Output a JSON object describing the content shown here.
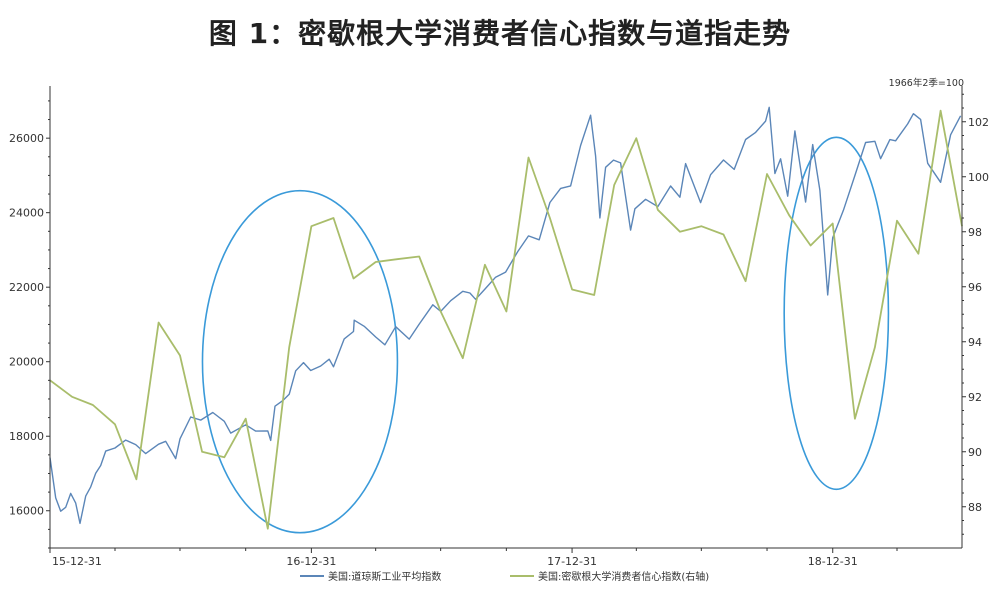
{
  "title": "图 1：密歇根大学消费者信心指数与道指走势",
  "chart_data": {
    "type": "line",
    "title": "图 1：密歇根大学消费者信心指数与道指走势",
    "x_axis": {
      "labels": [
        "15-12-31",
        "16-12-31",
        "17-12-31",
        "18-12-31"
      ],
      "range": [
        "2015-12-31",
        "2019-06-30"
      ]
    },
    "y_left": {
      "ticks": [
        16000,
        18000,
        20000,
        22000,
        24000,
        26000
      ],
      "range": [
        15000,
        27400
      ]
    },
    "y_right": {
      "ticks": [
        88,
        90,
        92,
        94,
        96,
        98,
        100,
        102
      ],
      "range": [
        86.5,
        103.3
      ],
      "unit": "1966年2季=100"
    },
    "grid": false,
    "legend_position": "bottom",
    "series": [
      {
        "name": "美国:道琼斯工业平均指数",
        "axis": "left",
        "color": "#5b86b8",
        "points": [
          [
            "2015-12-31",
            17425
          ],
          [
            "2016-01-08",
            16346
          ],
          [
            "2016-01-15",
            15988
          ],
          [
            "2016-01-22",
            16093
          ],
          [
            "2016-01-29",
            16466
          ],
          [
            "2016-02-05",
            16205
          ],
          [
            "2016-02-11",
            15660
          ],
          [
            "2016-02-19",
            16392
          ],
          [
            "2016-02-26",
            16640
          ],
          [
            "2016-03-04",
            17006
          ],
          [
            "2016-03-11",
            17213
          ],
          [
            "2016-03-18",
            17602
          ],
          [
            "2016-03-31",
            17685
          ],
          [
            "2016-04-15",
            17897
          ],
          [
            "2016-04-29",
            17774
          ],
          [
            "2016-05-13",
            17535
          ],
          [
            "2016-05-31",
            17787
          ],
          [
            "2016-06-10",
            17865
          ],
          [
            "2016-06-24",
            17400
          ],
          [
            "2016-06-30",
            17930
          ],
          [
            "2016-07-15",
            18516
          ],
          [
            "2016-07-29",
            18432
          ],
          [
            "2016-08-15",
            18636
          ],
          [
            "2016-08-31",
            18400
          ],
          [
            "2016-09-09",
            18085
          ],
          [
            "2016-09-30",
            18308
          ],
          [
            "2016-10-14",
            18138
          ],
          [
            "2016-10-31",
            18142
          ],
          [
            "2016-11-04",
            17888
          ],
          [
            "2016-11-10",
            18807
          ],
          [
            "2016-11-21",
            18956
          ],
          [
            "2016-11-30",
            19124
          ],
          [
            "2016-12-09",
            19757
          ],
          [
            "2016-12-20",
            19975
          ],
          [
            "2016-12-30",
            19763
          ],
          [
            "2017-01-13",
            19886
          ],
          [
            "2017-01-25",
            20068
          ],
          [
            "2017-01-31",
            19864
          ],
          [
            "2017-02-15",
            20611
          ],
          [
            "2017-02-28",
            20812
          ],
          [
            "2017-03-01",
            21115
          ],
          [
            "2017-03-15",
            20950
          ],
          [
            "2017-03-31",
            20663
          ],
          [
            "2017-04-13",
            20453
          ],
          [
            "2017-04-28",
            20940
          ],
          [
            "2017-05-17",
            20606
          ],
          [
            "2017-05-31",
            21009
          ],
          [
            "2017-06-19",
            21528
          ],
          [
            "2017-06-30",
            21350
          ],
          [
            "2017-07-14",
            21638
          ],
          [
            "2017-07-31",
            21891
          ],
          [
            "2017-08-10",
            21844
          ],
          [
            "2017-08-18",
            21674
          ],
          [
            "2017-08-31",
            21948
          ],
          [
            "2017-09-15",
            22268
          ],
          [
            "2017-09-29",
            22405
          ],
          [
            "2017-10-16",
            22957
          ],
          [
            "2017-10-31",
            23377
          ],
          [
            "2017-11-15",
            23272
          ],
          [
            "2017-11-30",
            24272
          ],
          [
            "2017-12-15",
            24651
          ],
          [
            "2017-12-29",
            24719
          ],
          [
            "2018-01-12",
            25803
          ],
          [
            "2018-01-26",
            26617
          ],
          [
            "2018-02-02",
            25521
          ],
          [
            "2018-02-08",
            23860
          ],
          [
            "2018-02-16",
            25219
          ],
          [
            "2018-02-27",
            25410
          ],
          [
            "2018-03-09",
            25336
          ],
          [
            "2018-03-23",
            23533
          ],
          [
            "2018-03-29",
            24103
          ],
          [
            "2018-04-13",
            24360
          ],
          [
            "2018-04-30",
            24163
          ],
          [
            "2018-05-18",
            24715
          ],
          [
            "2018-05-31",
            24416
          ],
          [
            "2018-06-08",
            25317
          ],
          [
            "2018-06-29",
            24271
          ],
          [
            "2018-07-13",
            25019
          ],
          [
            "2018-07-31",
            25415
          ],
          [
            "2018-08-15",
            25162
          ],
          [
            "2018-08-31",
            25965
          ],
          [
            "2018-09-14",
            26154
          ],
          [
            "2018-09-28",
            26458
          ],
          [
            "2018-10-03",
            26828
          ],
          [
            "2018-10-11",
            25052
          ],
          [
            "2018-10-19",
            25445
          ],
          [
            "2018-10-29",
            24443
          ],
          [
            "2018-11-08",
            26191
          ],
          [
            "2018-11-23",
            24286
          ],
          [
            "2018-12-03",
            25826
          ],
          [
            "2018-12-13",
            24597
          ],
          [
            "2018-12-24",
            21792
          ],
          [
            "2018-12-31",
            23327
          ],
          [
            "2019-01-15",
            24065
          ],
          [
            "2019-01-31",
            24999
          ],
          [
            "2019-02-15",
            25883
          ],
          [
            "2019-02-28",
            25916
          ],
          [
            "2019-03-08",
            25450
          ],
          [
            "2019-03-21",
            25962
          ],
          [
            "2019-03-29",
            25929
          ],
          [
            "2019-04-15",
            26384
          ],
          [
            "2019-04-23",
            26656
          ],
          [
            "2019-05-03",
            26504
          ],
          [
            "2019-05-13",
            25324
          ],
          [
            "2019-05-31",
            24815
          ],
          [
            "2019-06-14",
            26090
          ],
          [
            "2019-06-28",
            26600
          ]
        ]
      },
      {
        "name": "美国:密歇根大学消费者信心指数(右轴)",
        "axis": "right",
        "color": "#a9bd6b",
        "points": [
          [
            "2015-12-31",
            92.6
          ],
          [
            "2016-01-31",
            92.0
          ],
          [
            "2016-02-29",
            91.7
          ],
          [
            "2016-03-31",
            91.0
          ],
          [
            "2016-04-30",
            89.0
          ],
          [
            "2016-05-31",
            94.7
          ],
          [
            "2016-06-30",
            93.5
          ],
          [
            "2016-07-31",
            90.0
          ],
          [
            "2016-08-31",
            89.8
          ],
          [
            "2016-09-30",
            91.2
          ],
          [
            "2016-10-31",
            87.2
          ],
          [
            "2016-11-30",
            93.8
          ],
          [
            "2016-12-31",
            98.2
          ],
          [
            "2017-01-31",
            98.5
          ],
          [
            "2017-02-28",
            96.3
          ],
          [
            "2017-03-31",
            96.9
          ],
          [
            "2017-04-30",
            97.0
          ],
          [
            "2017-05-31",
            97.1
          ],
          [
            "2017-06-30",
            95.1
          ],
          [
            "2017-07-31",
            93.4
          ],
          [
            "2017-08-31",
            96.8
          ],
          [
            "2017-09-30",
            95.1
          ],
          [
            "2017-10-31",
            100.7
          ],
          [
            "2017-11-30",
            98.5
          ],
          [
            "2017-12-31",
            95.9
          ],
          [
            "2018-01-31",
            95.7
          ],
          [
            "2018-02-28",
            99.7
          ],
          [
            "2018-03-31",
            101.4
          ],
          [
            "2018-04-30",
            98.8
          ],
          [
            "2018-05-31",
            98.0
          ],
          [
            "2018-06-30",
            98.2
          ],
          [
            "2018-07-31",
            97.9
          ],
          [
            "2018-08-31",
            96.2
          ],
          [
            "2018-09-30",
            100.1
          ],
          [
            "2018-10-31",
            98.6
          ],
          [
            "2018-11-30",
            97.5
          ],
          [
            "2018-12-31",
            98.3
          ],
          [
            "2019-01-31",
            91.2
          ],
          [
            "2019-02-28",
            93.8
          ],
          [
            "2019-03-31",
            98.4
          ],
          [
            "2019-04-30",
            97.2
          ],
          [
            "2019-05-31",
            102.4
          ],
          [
            "2019-06-30",
            98.2
          ]
        ]
      }
    ],
    "annotations": [
      {
        "shape": "ellipse",
        "center": [
          "2016-12-15",
          20000
        ],
        "span": [
          "2016-08-01",
          "2017-05-01"
        ],
        "color": "#3a9ad9"
      },
      {
        "shape": "ellipse",
        "center": [
          "2019-01-05",
          21300
        ],
        "span": [
          "2018-10-25",
          "2019-03-20"
        ],
        "color": "#3a9ad9"
      }
    ]
  },
  "icons": {
    "legend_marker": "line-swatch"
  }
}
